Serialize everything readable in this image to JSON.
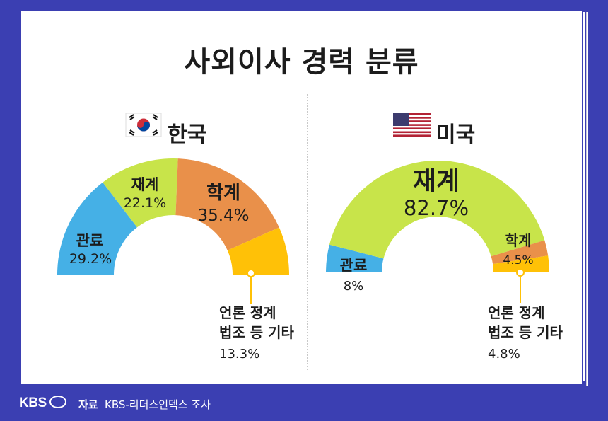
{
  "title": "사외이사 경력 분류",
  "colors": {
    "gov": "#45b0e6",
    "biz": "#c8e44a",
    "academia": "#e9904a",
    "other": "#ffc107",
    "background": "#3b3fb2"
  },
  "footer": {
    "logo": "KBS",
    "source_label": "자료",
    "source": "KBS-리더스인덱스 조사"
  },
  "chart_data": [
    {
      "type": "pie",
      "country": "한국",
      "flag_icon": "korea-flag-icon",
      "slices": [
        {
          "key": "gov",
          "label": "관료",
          "pct_text": "29.2%",
          "value": 29.2
        },
        {
          "key": "biz",
          "label": "재계",
          "pct_text": "22.1%",
          "value": 22.1
        },
        {
          "key": "academia",
          "label": "학계",
          "pct_text": "35.4%",
          "value": 35.4
        },
        {
          "key": "other",
          "label": "언론 정계 법조 등 기타",
          "label_line1": "언론 정계",
          "label_line2": "법조 등 기타",
          "pct_text": "13.3%",
          "value": 13.3
        }
      ]
    },
    {
      "type": "pie",
      "country": "미국",
      "flag_icon": "usa-flag-icon",
      "slices": [
        {
          "key": "gov",
          "label": "관료",
          "pct_text": "8%",
          "value": 8
        },
        {
          "key": "biz",
          "label": "재계",
          "pct_text": "82.7%",
          "value": 82.7
        },
        {
          "key": "academia",
          "label": "학계",
          "pct_text": "4.5%",
          "value": 4.5
        },
        {
          "key": "other",
          "label": "언론 정계 법조 등 기타",
          "label_line1": "언론 정계",
          "label_line2": "법조 등 기타",
          "pct_text": "4.8%",
          "value": 4.8
        }
      ]
    }
  ]
}
